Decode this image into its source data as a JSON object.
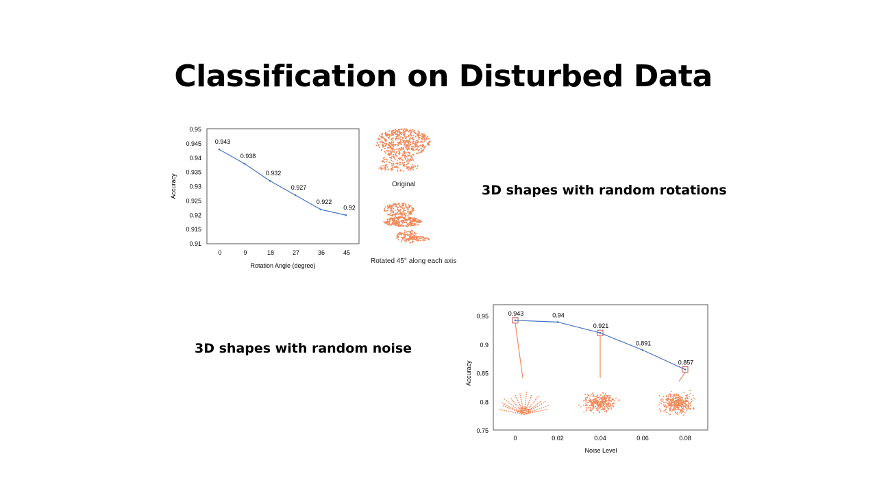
{
  "slide": {
    "title": "Classification on Disturbed Data",
    "caption_rotation": "3D shapes with random rotations",
    "caption_noise": "3D shapes with random noise",
    "label_original": "Original",
    "label_rotated": "Rotated 45° along each axis"
  },
  "colors": {
    "line": "#4472c4",
    "point_cloud": "#f0895a",
    "axis": "#555555",
    "callout": "#c0504d"
  },
  "chart_data": [
    {
      "type": "line",
      "x": [
        0,
        9,
        18,
        27,
        36,
        45
      ],
      "categories": [
        "0",
        "9",
        "18",
        "27",
        "36",
        "45"
      ],
      "values": [
        0.943,
        0.938,
        0.932,
        0.927,
        0.922,
        0.92
      ],
      "data_labels": [
        "0.943",
        "0.938",
        "0.932",
        "0.927",
        "0.922",
        "0.92"
      ],
      "xlabel": "Rotation Angle (degree)",
      "ylabel": "Accuracy",
      "ylim": [
        0.91,
        0.95
      ],
      "yticks": [
        "0.91",
        "0.915",
        "0.92",
        "0.925",
        "0.93",
        "0.935",
        "0.94",
        "0.945",
        "0.95"
      ],
      "grid": false
    },
    {
      "type": "line",
      "x": [
        0,
        0.02,
        0.04,
        0.06,
        0.08
      ],
      "categories": [
        "0",
        "0.02",
        "0.04",
        "0.06",
        "0.08"
      ],
      "values": [
        0.943,
        0.94,
        0.921,
        0.891,
        0.857
      ],
      "data_labels": [
        "0.943",
        "0.94",
        "0.921",
        "0.891",
        "0.857"
      ],
      "highlighted_points": [
        0,
        2,
        4
      ],
      "xlabel": "Noise Level",
      "ylabel": "Accuracy",
      "ylim": [
        0.75,
        0.95
      ],
      "yticks": [
        "0.75",
        "0.8",
        "0.85",
        "0.9",
        "0.95"
      ],
      "grid": false
    }
  ]
}
